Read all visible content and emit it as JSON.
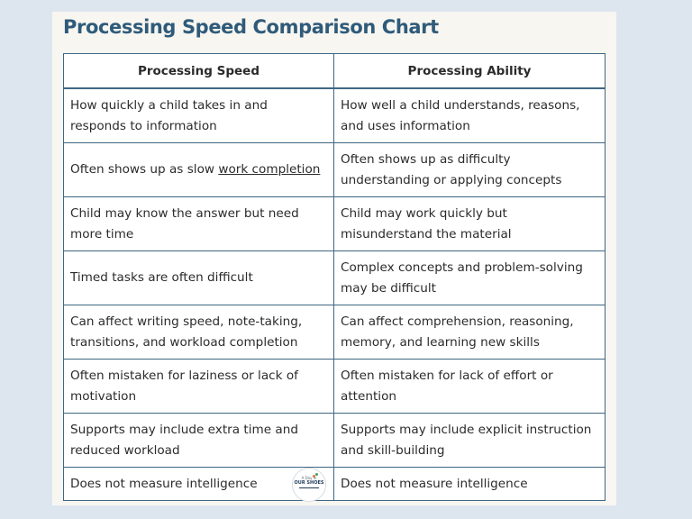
{
  "title": "Processing Speed Comparison Chart",
  "table": {
    "headers": [
      "Processing Speed",
      "Processing Ability"
    ],
    "rows": [
      {
        "speed": "How quickly a child takes in and responds to information",
        "ability": "How well a child understands, reasons, and uses information"
      },
      {
        "speed_prefix": "Often shows up as slow ",
        "speed_link": "work completion",
        "ability": "Often shows up as difficulty understanding or applying concepts"
      },
      {
        "speed": "Child may know the answer but need more time",
        "ability": "Child may work quickly but misunderstand the material"
      },
      {
        "speed": "Timed tasks are often difficult",
        "ability": "Complex concepts and problem-solving may be difficult"
      },
      {
        "speed": "Can affect writing speed, note-taking, transitions, and workload completion",
        "ability": "Can affect comprehension, reasoning, memory, and learning new skills"
      },
      {
        "speed": "Often mistaken for laziness or lack of motivation",
        "ability": "Often mistaken for lack of effort or attention"
      },
      {
        "speed": "Supports may include extra time and reduced workload",
        "ability": "Supports may include explicit instruction and skill-building"
      },
      {
        "speed": "Does not measure intelligence",
        "ability": "Does not measure intelligence"
      }
    ]
  },
  "logo": {
    "top_text": "A Day in",
    "main_text": "OUR SHOES"
  },
  "colors": {
    "background": "#dde6ef",
    "card": "#f8f6f1",
    "title": "#2f5b7a",
    "border": "#3f6683",
    "text": "#2b2b2b"
  }
}
